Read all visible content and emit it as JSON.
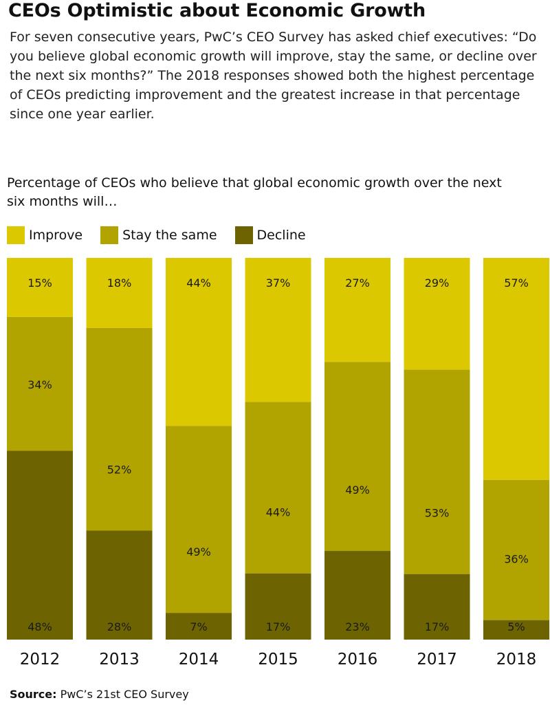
{
  "title": "CEOs Optimistic about Economic Growth",
  "intro": "For seven consecutive years, PwC’s CEO Survey has asked chief executives: “Do you believe global economic growth will improve, stay the same, or decline over the next six months?” The 2018 responses showed both the highest percentage of CEOs predicting improvement and the greatest increase in that percentage since one year earlier.",
  "source": {
    "label": "Source:",
    "text": "PwC’s 21st CEO Survey"
  },
  "chart_data": {
    "type": "bar",
    "stacked": true,
    "normalized": true,
    "title": "Percentage of CEOs who believe that global economic growth over the next six months will…",
    "legend_position": "top-left",
    "grid": false,
    "categories": [
      "2012",
      "2013",
      "2014",
      "2015",
      "2016",
      "2017",
      "2018"
    ],
    "series": [
      {
        "name": "Improve",
        "color": "#dcc800",
        "values": [
          15,
          18,
          44,
          37,
          27,
          29,
          57
        ],
        "labels": [
          "15%",
          "18%",
          "44%",
          "37%",
          "27%",
          "29%",
          "57%"
        ]
      },
      {
        "name": "Stay the same",
        "color": "#b2a400",
        "values": [
          34,
          52,
          49,
          44,
          49,
          53,
          36
        ],
        "labels": [
          "34%",
          "52%",
          "49%",
          "44%",
          "49%",
          "53%",
          "36%"
        ]
      },
      {
        "name": "Decline",
        "color": "#6d6300",
        "values": [
          48,
          28,
          7,
          17,
          23,
          17,
          5
        ],
        "labels": [
          "48%",
          "28%",
          "7%",
          "17%",
          "23%",
          "17%",
          "5%"
        ]
      }
    ]
  }
}
